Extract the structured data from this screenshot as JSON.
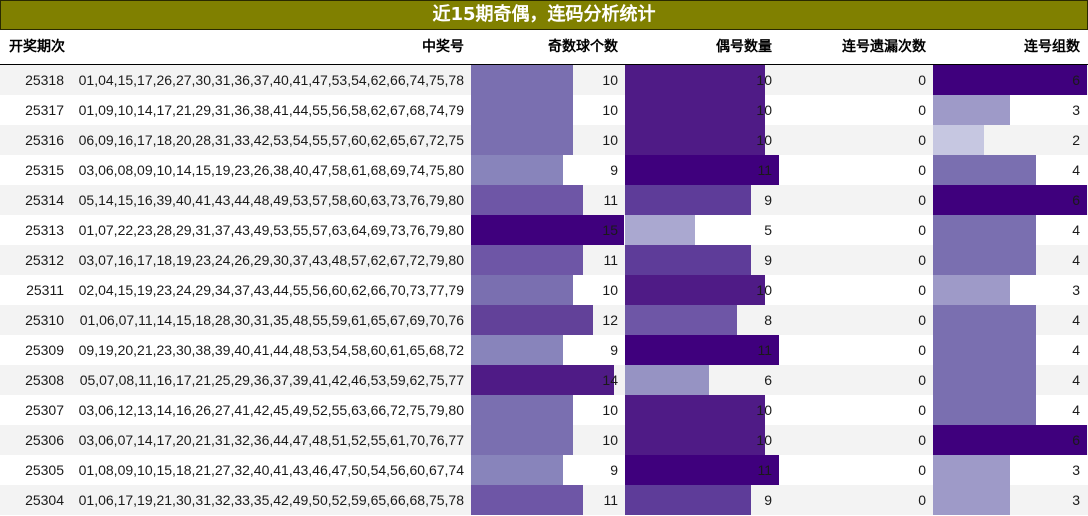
{
  "title": "近15期奇偶，连码分析统计",
  "columns": {
    "period": "开奖期次",
    "numbers": "中奖号",
    "odd_count": "奇数球个数",
    "even_count": "偶号数量",
    "consec_miss": "连号遗漏次数",
    "consec_groups": "连号组数"
  },
  "colors": {
    "title_bg": "#808000",
    "row_alt": "#f3f3f3",
    "scale": {
      "2": "#c6c7e1",
      "3": "#9e9ac8",
      "4": "#7a6fb0",
      "6g": "#3f007d",
      "odd_9": "#8884bb",
      "odd_10": "#7a6fb0",
      "odd_11": "#6e56a6",
      "odd_12": "#624199",
      "odd_14": "#4f1b86",
      "odd_15": "#3f007d",
      "even_5": "#aaa8d0",
      "even_6": "#9693c3",
      "even_8": "#6e56a6",
      "even_9": "#5e3c99",
      "even_10": "#4f1b86",
      "even_11": "#3f007d"
    }
  },
  "rows": [
    {
      "period": "25318",
      "numbers": "01,04,15,17,26,27,30,31,36,37,40,41,47,53,54,62,66,74,75,78",
      "odd": "10",
      "even": "10",
      "miss": "0",
      "groups": "6"
    },
    {
      "period": "25317",
      "numbers": "01,09,10,14,17,21,29,31,36,38,41,44,55,56,58,62,67,68,74,79",
      "odd": "10",
      "even": "10",
      "miss": "0",
      "groups": "3"
    },
    {
      "period": "25316",
      "numbers": "06,09,16,17,18,20,28,31,33,42,53,54,55,57,60,62,65,67,72,75",
      "odd": "10",
      "even": "10",
      "miss": "0",
      "groups": "2"
    },
    {
      "period": "25315",
      "numbers": "03,06,08,09,10,14,15,19,23,26,38,40,47,58,61,68,69,74,75,80",
      "odd": "9",
      "even": "11",
      "miss": "0",
      "groups": "4"
    },
    {
      "period": "25314",
      "numbers": "05,14,15,16,39,40,41,43,44,48,49,53,57,58,60,63,73,76,79,80",
      "odd": "11",
      "even": "9",
      "miss": "0",
      "groups": "6"
    },
    {
      "period": "25313",
      "numbers": "01,07,22,23,28,29,31,37,43,49,53,55,57,63,64,69,73,76,79,80",
      "odd": "15",
      "even": "5",
      "miss": "0",
      "groups": "4"
    },
    {
      "period": "25312",
      "numbers": "03,07,16,17,18,19,23,24,26,29,30,37,43,48,57,62,67,72,79,80",
      "odd": "11",
      "even": "9",
      "miss": "0",
      "groups": "4"
    },
    {
      "period": "25311",
      "numbers": "02,04,15,19,23,24,29,34,37,43,44,55,56,60,62,66,70,73,77,79",
      "odd": "10",
      "even": "10",
      "miss": "0",
      "groups": "3"
    },
    {
      "period": "25310",
      "numbers": "01,06,07,11,14,15,18,28,30,31,35,48,55,59,61,65,67,69,70,76",
      "odd": "12",
      "even": "8",
      "miss": "0",
      "groups": "4"
    },
    {
      "period": "25309",
      "numbers": "09,19,20,21,23,30,38,39,40,41,44,48,53,54,58,60,61,65,68,72",
      "odd": "9",
      "even": "11",
      "miss": "0",
      "groups": "4"
    },
    {
      "period": "25308",
      "numbers": "05,07,08,11,16,17,21,25,29,36,37,39,41,42,46,53,59,62,75,77",
      "odd": "14",
      "even": "6",
      "miss": "0",
      "groups": "4"
    },
    {
      "period": "25307",
      "numbers": "03,06,12,13,14,16,26,27,41,42,45,49,52,55,63,66,72,75,79,80",
      "odd": "10",
      "even": "10",
      "miss": "0",
      "groups": "4"
    },
    {
      "period": "25306",
      "numbers": "03,06,07,14,17,20,21,31,32,36,44,47,48,51,52,55,61,70,76,77",
      "odd": "10",
      "even": "10",
      "miss": "0",
      "groups": "6"
    },
    {
      "period": "25305",
      "numbers": "01,08,09,10,15,18,21,27,32,40,41,43,46,47,50,54,56,60,67,74",
      "odd": "9",
      "even": "11",
      "miss": "0",
      "groups": "3"
    },
    {
      "period": "25304",
      "numbers": "01,06,17,19,21,30,31,32,33,35,42,49,50,52,59,65,66,68,75,78",
      "odd": "11",
      "even": "9",
      "miss": "0",
      "groups": "3"
    }
  ]
}
